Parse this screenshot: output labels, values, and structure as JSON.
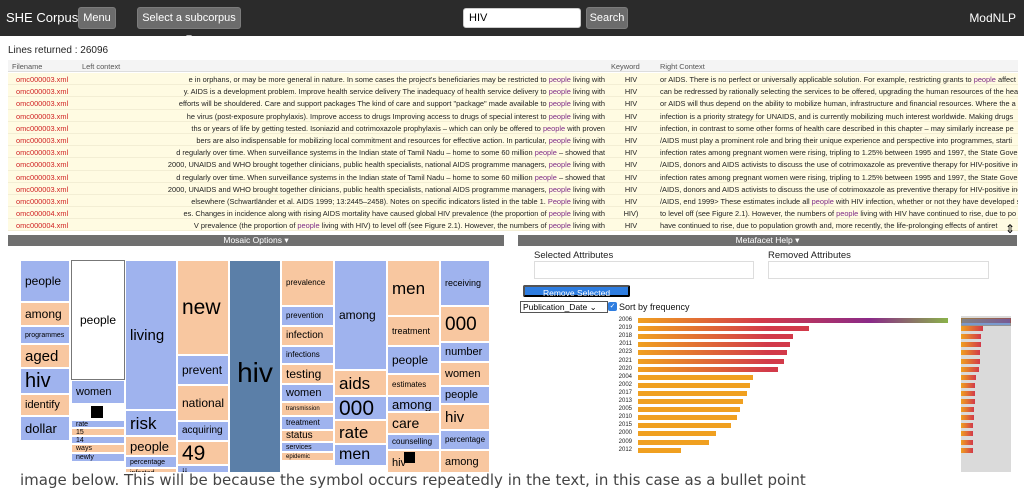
{
  "navbar": {
    "brand": "SHE Corpus",
    "menu_label": "Menu",
    "subcorpus_label": "Select a subcorpus",
    "search_value": "HIV",
    "search_label": "Search",
    "right_label": "ModNLP"
  },
  "lines_returned": "Lines returned : 26096",
  "concordance": {
    "headers": {
      "filename": "Filename",
      "left": "Left context",
      "keyword": "Keyword",
      "right": "Right Context"
    },
    "rows": [
      {
        "file": "omc000003.xml",
        "left": "e in orphans, or may be more general in nature. In some cases the project's beneficiaries may be restricted to people living with",
        "kw": "HIV",
        "right": "or AIDS. There is no perfect or universally applicable solution. For example, restricting grants to people affect"
      },
      {
        "file": "omc000003.xml",
        "left": "y. AIDS is a development problem. Improve health service delivery The inadequacy of health service delivery to people living with",
        "kw": "HIV",
        "right": "can be redressed by rationally selecting the services to be offered, upgrading the human resources of the hea"
      },
      {
        "file": "omc000003.xml",
        "left": "efforts will be shouldered. Care and support packages The kind of care and support \"package\" made available to people living with",
        "kw": "HIV",
        "right": "or AIDS will thus depend on the ability to mobilize human, infrastructure and financial resources. Where the a"
      },
      {
        "file": "omc000003.xml",
        "left": "he virus (post-exposure prophylaxis). Improve access to drugs Improving access to drugs of special interest to people living with",
        "kw": "HIV",
        "right": "infection is a priority strategy for UNAIDS, and is currently mobilizing much interest worldwide. Making drugs"
      },
      {
        "file": "omc000003.xml",
        "left": "ths or years of life by getting tested. Isoniazid and cotrimoxazole prophylaxis – which can only be offered to people with proven",
        "kw": "HIV",
        "right": "infection, in contrast to some other forms of health care described in this chapter – may similarly increase pe"
      },
      {
        "file": "omc000003.xml",
        "left": "bers are also indispensable for mobilizing local commitment and resources for effective action. In particular, people living with",
        "kw": "HIV",
        "right": "/AIDS must play a prominent role and bring their unique experience and perspective into programmes, starti"
      },
      {
        "file": "omc000003.xml",
        "left": "d regularly over time. When surveillance systems in the Indian state of Tamil Nadu – home to some 60 million people – showed that",
        "kw": "HIV",
        "right": "infection rates among pregnant women were rising, tripling to 1.25% between 1995 and 1997, the State Gove"
      },
      {
        "file": "omc000003.xml",
        "left": "2000, UNAIDS and WHO brought together clinicians, public health specialists, national AIDS programme managers, people living with",
        "kw": "HIV",
        "right": "/AIDS, donors and AIDS activists to discuss the use of cotrimoxazole as preventive therapy for HIV-positive inc"
      },
      {
        "file": "omc000003.xml",
        "left": "d regularly over time. When surveillance systems in the Indian state of Tamil Nadu – home to some 60 million people – showed that",
        "kw": "HIV",
        "right": "infection rates among pregnant women were rising, tripling to 1.25% between 1995 and 1997, the State Gove"
      },
      {
        "file": "omc000003.xml",
        "left": "2000, UNAIDS and WHO brought together clinicians, public health specialists, national AIDS programme managers, people living with",
        "kw": "HIV",
        "right": "/AIDS, donors and AIDS activists to discuss the use of cotrimoxazole as preventive therapy for HIV-positive inc"
      },
      {
        "file": "omc000003.xml",
        "left": "elsewhere (Schwartländer et al. AIDS 1999; 13:2445–2458). Notes on specific indicators listed in the table 1. People living with",
        "kw": "HIV",
        "right": "/AIDS, end 1999> These estimates include all people with HIV infection, whether or not they have developed s"
      },
      {
        "file": "omc000004.xml",
        "left": "es. Changes in incidence along with rising AIDS mortality have caused global HIV prevalence (the proportion of people living with",
        "kw": "HIV)",
        "right": "to level off (see Figure 2.1). However, the numbers of people living with HIV have continued to rise, due to po"
      },
      {
        "file": "omc000004.xml",
        "left": "V prevalence (the proportion of people living with HIV) to level off (see Figure 2.1). However, the numbers of people living with",
        "kw": "HIV",
        "right": "have continued to rise, due to population growth and, more recently, the life-prolonging effects of antiret"
      }
    ]
  },
  "mosaic_panel": {
    "title": "Mosaic Options"
  },
  "mosaic_words": [
    "people",
    "among",
    "programmes",
    "aged",
    "hiv",
    "identify",
    "dollar",
    "people",
    "women",
    "rate",
    "15",
    "14",
    "ways",
    "newly",
    "living",
    "risk",
    "people",
    "percentage",
    "infected",
    "new",
    "prevent",
    "national",
    "acquiring",
    "49",
    "ii",
    "hiv",
    "prevalence",
    "prevention",
    "infection",
    "infections",
    "testing",
    "women",
    "transmission",
    "treatment",
    "status",
    "services",
    "epidemic",
    "among",
    "aids",
    "000",
    "rate",
    "men",
    "men",
    "treatment",
    "people",
    "estimates",
    "among",
    "care",
    "counselling",
    "hiv",
    "receiving",
    "000",
    "number",
    "women",
    "people",
    "hiv",
    "percentage",
    "among"
  ],
  "metafacet": {
    "title": "Metafacet Help",
    "selected_label": "Selected Attributes",
    "removed_label": "Removed Attributes",
    "remove_button": "Remove Selected",
    "select_value": "Publication_Date",
    "sort_label": "Sort by frequency"
  },
  "chart_data": {
    "type": "bar",
    "orientation": "horizontal",
    "categories": [
      "2006",
      "2019",
      "2018",
      "2011",
      "2023",
      "2021",
      "2020",
      "2004",
      "2002",
      "2017",
      "2013",
      "2005",
      "2010",
      "2015",
      "2000",
      "2009",
      "2012"
    ],
    "values": [
      100,
      55,
      50,
      49,
      48,
      47,
      45,
      37,
      36,
      35,
      34,
      33,
      32,
      30,
      25,
      23,
      14
    ],
    "value_unit": "relative frequency (unlabelled)",
    "color_scale": [
      "#f0a020",
      "#d23a4a",
      "#8a2a88"
    ]
  },
  "caption": "image below. This will be because the symbol occurs repeatedly in the text, in this case as a bullet point"
}
